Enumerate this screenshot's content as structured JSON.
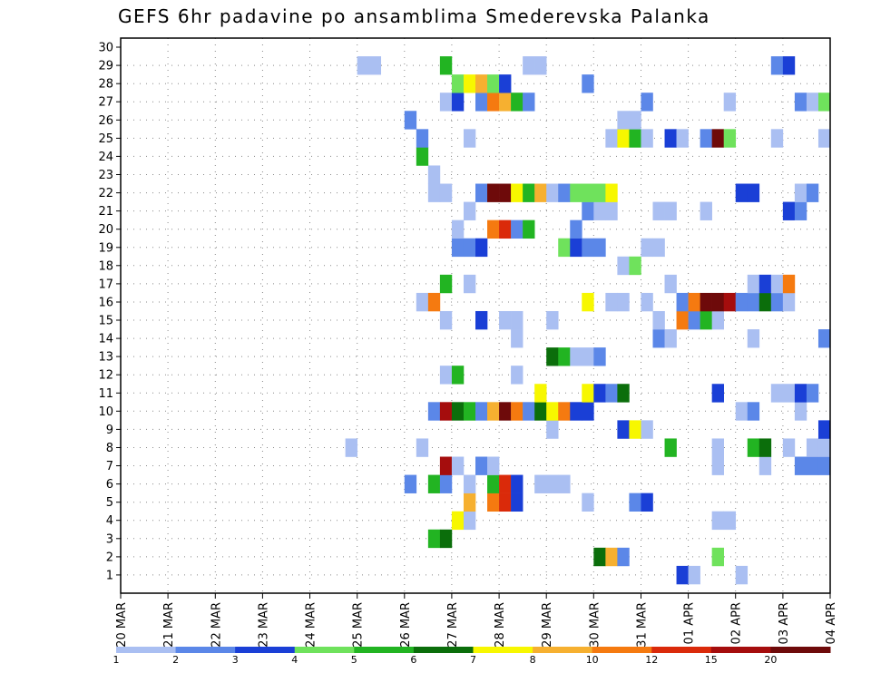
{
  "chart_data": {
    "type": "heatmap",
    "title": "GEFS 6hr padavine po ansamblima Smederevska Palanka",
    "xlabel": "",
    "ylabel": "",
    "x_tick_labels": [
      "20 MAR",
      "21 MAR",
      "22 MAR",
      "23 MAR",
      "24 MAR",
      "25 MAR",
      "26 MAR",
      "27 MAR",
      "28 MAR",
      "29 MAR",
      "30 MAR",
      "31 MAR",
      "01 APR",
      "02 APR",
      "03 APR",
      "04 APR"
    ],
    "y_tick_labels": [
      "1",
      "2",
      "3",
      "4",
      "5",
      "6",
      "7",
      "8",
      "9",
      "10",
      "11",
      "12",
      "13",
      "14",
      "15",
      "16",
      "17",
      "18",
      "19",
      "20",
      "21",
      "22",
      "23",
      "24",
      "25",
      "26",
      "27",
      "28",
      "29",
      "30"
    ],
    "grid": true,
    "time_steps": 60,
    "members": 30,
    "colorbar": {
      "labels": [
        "1",
        "2",
        "3",
        "4",
        "5",
        "6",
        "7",
        "8",
        "10",
        "12",
        "15",
        "20"
      ],
      "colors": [
        "#aabff2",
        "#5b87e8",
        "#1a3fd6",
        "#6fe25c",
        "#22b422",
        "#0b6e0b",
        "#f7f700",
        "#f6b030",
        "#f57a10",
        "#da2a0a",
        "#a50d0d",
        "#6e0a0a"
      ]
    },
    "cell_class_values": [
      1,
      2,
      3,
      4,
      5,
      6,
      7,
      8,
      10,
      12,
      15,
      20
    ],
    "cells": [
      [
        1,
        52,
        0
      ],
      [
        1,
        47,
        2
      ],
      [
        1,
        48,
        0
      ],
      [
        2,
        50,
        3
      ],
      [
        2,
        40,
        5
      ],
      [
        2,
        41,
        7
      ],
      [
        2,
        42,
        1
      ],
      [
        3,
        26,
        4
      ],
      [
        3,
        27,
        5
      ],
      [
        4,
        28,
        6
      ],
      [
        4,
        29,
        0
      ],
      [
        4,
        50,
        0
      ],
      [
        4,
        51,
        0
      ],
      [
        5,
        29,
        7
      ],
      [
        5,
        31,
        8
      ],
      [
        5,
        32,
        9
      ],
      [
        5,
        33,
        2
      ],
      [
        5,
        39,
        0
      ],
      [
        5,
        43,
        1
      ],
      [
        5,
        44,
        2
      ],
      [
        6,
        24,
        1
      ],
      [
        6,
        26,
        4
      ],
      [
        6,
        27,
        1
      ],
      [
        6,
        29,
        0
      ],
      [
        6,
        31,
        4
      ],
      [
        6,
        32,
        9
      ],
      [
        6,
        33,
        2
      ],
      [
        6,
        35,
        0
      ],
      [
        6,
        36,
        0
      ],
      [
        6,
        37,
        0
      ],
      [
        7,
        27,
        10
      ],
      [
        7,
        28,
        0
      ],
      [
        7,
        30,
        1
      ],
      [
        7,
        31,
        0
      ],
      [
        7,
        50,
        0
      ],
      [
        7,
        54,
        0
      ],
      [
        7,
        57,
        1
      ],
      [
        7,
        58,
        1
      ],
      [
        7,
        59,
        1
      ],
      [
        8,
        19,
        0
      ],
      [
        8,
        25,
        0
      ],
      [
        8,
        46,
        4
      ],
      [
        8,
        50,
        0
      ],
      [
        8,
        53,
        4
      ],
      [
        8,
        54,
        5
      ],
      [
        8,
        56,
        0
      ],
      [
        8,
        58,
        0
      ],
      [
        8,
        59,
        0
      ],
      [
        9,
        36,
        0
      ],
      [
        9,
        42,
        2
      ],
      [
        9,
        43,
        6
      ],
      [
        9,
        44,
        0
      ],
      [
        9,
        59,
        2
      ],
      [
        10,
        26,
        1
      ],
      [
        10,
        27,
        10
      ],
      [
        10,
        28,
        5
      ],
      [
        10,
        29,
        4
      ],
      [
        10,
        30,
        1
      ],
      [
        10,
        31,
        7
      ],
      [
        10,
        32,
        11
      ],
      [
        10,
        33,
        8
      ],
      [
        10,
        34,
        1
      ],
      [
        10,
        35,
        5
      ],
      [
        10,
        36,
        6
      ],
      [
        10,
        37,
        8
      ],
      [
        10,
        38,
        2
      ],
      [
        10,
        39,
        2
      ],
      [
        10,
        52,
        0
      ],
      [
        10,
        53,
        1
      ],
      [
        10,
        57,
        0
      ],
      [
        11,
        35,
        6
      ],
      [
        11,
        39,
        6
      ],
      [
        11,
        40,
        2
      ],
      [
        11,
        41,
        1
      ],
      [
        11,
        42,
        5
      ],
      [
        11,
        50,
        2
      ],
      [
        11,
        55,
        0
      ],
      [
        11,
        56,
        0
      ],
      [
        11,
        57,
        2
      ],
      [
        11,
        58,
        1
      ],
      [
        12,
        27,
        0
      ],
      [
        12,
        28,
        4
      ],
      [
        12,
        33,
        0
      ],
      [
        13,
        36,
        5
      ],
      [
        13,
        37,
        4
      ],
      [
        13,
        38,
        0
      ],
      [
        13,
        39,
        0
      ],
      [
        13,
        40,
        1
      ],
      [
        14,
        33,
        0
      ],
      [
        14,
        45,
        1
      ],
      [
        14,
        46,
        0
      ],
      [
        14,
        53,
        0
      ],
      [
        14,
        59,
        1
      ],
      [
        15,
        27,
        0
      ],
      [
        15,
        30,
        2
      ],
      [
        15,
        32,
        0
      ],
      [
        15,
        33,
        0
      ],
      [
        15,
        36,
        0
      ],
      [
        15,
        45,
        0
      ],
      [
        15,
        47,
        8
      ],
      [
        15,
        48,
        1
      ],
      [
        15,
        49,
        4
      ],
      [
        15,
        50,
        0
      ],
      [
        16,
        25,
        0
      ],
      [
        16,
        26,
        8
      ],
      [
        16,
        39,
        6
      ],
      [
        16,
        41,
        0
      ],
      [
        16,
        42,
        0
      ],
      [
        16,
        44,
        0
      ],
      [
        16,
        47,
        1
      ],
      [
        16,
        48,
        8
      ],
      [
        16,
        49,
        11
      ],
      [
        16,
        50,
        11
      ],
      [
        16,
        51,
        10
      ],
      [
        16,
        52,
        1
      ],
      [
        16,
        53,
        1
      ],
      [
        16,
        54,
        5
      ],
      [
        16,
        55,
        1
      ],
      [
        16,
        56,
        0
      ],
      [
        17,
        27,
        4
      ],
      [
        17,
        29,
        0
      ],
      [
        17,
        46,
        0
      ],
      [
        17,
        53,
        0
      ],
      [
        17,
        54,
        2
      ],
      [
        17,
        55,
        0
      ],
      [
        17,
        56,
        8
      ],
      [
        18,
        42,
        0
      ],
      [
        18,
        43,
        3
      ],
      [
        19,
        28,
        1
      ],
      [
        19,
        29,
        1
      ],
      [
        19,
        30,
        2
      ],
      [
        19,
        37,
        3
      ],
      [
        19,
        38,
        2
      ],
      [
        19,
        39,
        1
      ],
      [
        19,
        40,
        1
      ],
      [
        19,
        44,
        0
      ],
      [
        19,
        45,
        0
      ],
      [
        20,
        28,
        0
      ],
      [
        20,
        31,
        8
      ],
      [
        20,
        32,
        9
      ],
      [
        20,
        33,
        1
      ],
      [
        20,
        34,
        4
      ],
      [
        20,
        38,
        1
      ],
      [
        21,
        29,
        0
      ],
      [
        21,
        39,
        1
      ],
      [
        21,
        40,
        0
      ],
      [
        21,
        41,
        0
      ],
      [
        21,
        45,
        0
      ],
      [
        21,
        46,
        0
      ],
      [
        21,
        49,
        0
      ],
      [
        21,
        56,
        2
      ],
      [
        21,
        57,
        1
      ],
      [
        22,
        26,
        0
      ],
      [
        22,
        27,
        0
      ],
      [
        22,
        30,
        1
      ],
      [
        22,
        31,
        11
      ],
      [
        22,
        32,
        11
      ],
      [
        22,
        33,
        6
      ],
      [
        22,
        34,
        4
      ],
      [
        22,
        35,
        7
      ],
      [
        22,
        36,
        0
      ],
      [
        22,
        37,
        1
      ],
      [
        22,
        38,
        3
      ],
      [
        22,
        39,
        3
      ],
      [
        22,
        40,
        3
      ],
      [
        22,
        41,
        6
      ],
      [
        22,
        52,
        2
      ],
      [
        22,
        53,
        2
      ],
      [
        22,
        57,
        0
      ],
      [
        22,
        58,
        1
      ],
      [
        23,
        26,
        0
      ],
      [
        24,
        25,
        4
      ],
      [
        25,
        25,
        1
      ],
      [
        25,
        29,
        0
      ],
      [
        25,
        41,
        0
      ],
      [
        25,
        42,
        6
      ],
      [
        25,
        43,
        4
      ],
      [
        25,
        44,
        0
      ],
      [
        25,
        46,
        2
      ],
      [
        25,
        47,
        0
      ],
      [
        25,
        49,
        1
      ],
      [
        25,
        50,
        11
      ],
      [
        25,
        51,
        3
      ],
      [
        25,
        55,
        0
      ],
      [
        25,
        59,
        0
      ],
      [
        26,
        24,
        1
      ],
      [
        26,
        42,
        0
      ],
      [
        26,
        43,
        0
      ],
      [
        27,
        27,
        0
      ],
      [
        27,
        28,
        2
      ],
      [
        27,
        30,
        1
      ],
      [
        27,
        31,
        8
      ],
      [
        27,
        32,
        7
      ],
      [
        27,
        33,
        4
      ],
      [
        27,
        34,
        1
      ],
      [
        27,
        44,
        1
      ],
      [
        27,
        51,
        0
      ],
      [
        27,
        57,
        1
      ],
      [
        27,
        58,
        0
      ],
      [
        27,
        59,
        3
      ],
      [
        28,
        28,
        3
      ],
      [
        28,
        29,
        6
      ],
      [
        28,
        30,
        7
      ],
      [
        28,
        31,
        3
      ],
      [
        28,
        32,
        2
      ],
      [
        28,
        39,
        1
      ],
      [
        29,
        20,
        0
      ],
      [
        29,
        21,
        0
      ],
      [
        29,
        27,
        4
      ],
      [
        29,
        34,
        0
      ],
      [
        29,
        35,
        0
      ],
      [
        29,
        55,
        1
      ],
      [
        29,
        56,
        2
      ]
    ]
  }
}
